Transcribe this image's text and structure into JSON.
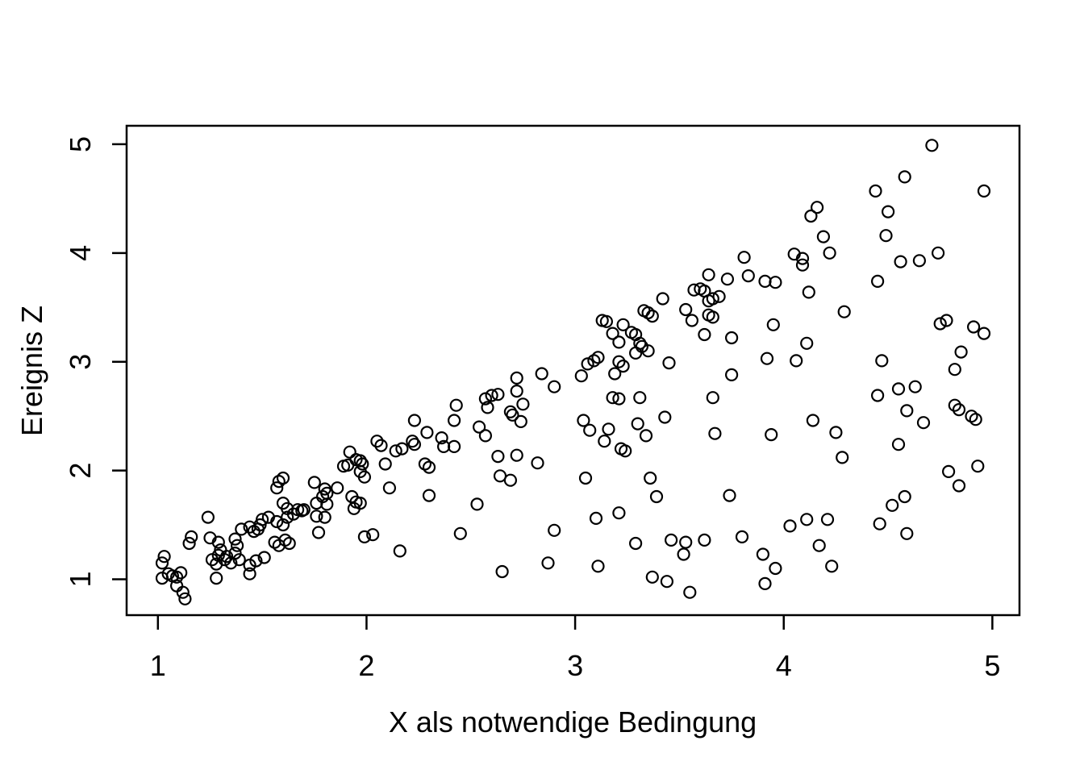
{
  "figure": {
    "background": "#ffffff",
    "foreground": "#000000"
  },
  "chart_data": {
    "type": "scatter",
    "title": "",
    "xlabel": "X als notwendige Bedingung",
    "ylabel": "Ereignis Z",
    "x_ticks": [
      1,
      2,
      3,
      4,
      5
    ],
    "y_ticks": [
      1,
      2,
      3,
      4,
      5
    ],
    "xlim": [
      0.85,
      5.13
    ],
    "ylim": [
      0.67,
      5.17
    ],
    "grid": false,
    "legend": null,
    "marker": "open-circle",
    "marker_color": "#000000",
    "points": [
      [
        1.02,
        1.15
      ],
      [
        1.03,
        1.21
      ],
      [
        1.02,
        1.01
      ],
      [
        1.05,
        1.05
      ],
      [
        1.07,
        1.03
      ],
      [
        1.09,
        1.02
      ],
      [
        1.11,
        1.06
      ],
      [
        1.09,
        0.94
      ],
      [
        1.12,
        0.88
      ],
      [
        1.13,
        0.82
      ],
      [
        1.15,
        1.33
      ],
      [
        1.16,
        1.39
      ],
      [
        1.24,
        1.57
      ],
      [
        1.25,
        1.38
      ],
      [
        1.26,
        1.18
      ],
      [
        1.28,
        1.14
      ],
      [
        1.28,
        1.01
      ],
      [
        1.29,
        1.34
      ],
      [
        1.3,
        1.27
      ],
      [
        1.29,
        1.22
      ],
      [
        1.32,
        1.18
      ],
      [
        1.33,
        1.21
      ],
      [
        1.35,
        1.15
      ],
      [
        1.39,
        1.18
      ],
      [
        1.37,
        1.24
      ],
      [
        1.38,
        1.31
      ],
      [
        1.37,
        1.37
      ],
      [
        1.4,
        1.46
      ],
      [
        1.44,
        1.48
      ],
      [
        1.46,
        1.44
      ],
      [
        1.48,
        1.46
      ],
      [
        1.49,
        1.5
      ],
      [
        1.5,
        1.55
      ],
      [
        1.53,
        1.57
      ],
      [
        1.44,
        1.13
      ],
      [
        1.47,
        1.17
      ],
      [
        1.51,
        1.2
      ],
      [
        1.44,
        1.05
      ],
      [
        1.56,
        1.34
      ],
      [
        1.58,
        1.31
      ],
      [
        1.61,
        1.36
      ],
      [
        1.63,
        1.33
      ],
      [
        1.57,
        1.53
      ],
      [
        1.6,
        1.5
      ],
      [
        1.62,
        1.57
      ],
      [
        1.65,
        1.6
      ],
      [
        1.67,
        1.64
      ],
      [
        1.7,
        1.64
      ],
      [
        1.58,
        1.9
      ],
      [
        1.6,
        1.93
      ],
      [
        1.57,
        1.84
      ],
      [
        1.6,
        1.7
      ],
      [
        1.62,
        1.65
      ],
      [
        1.69,
        1.63
      ],
      [
        1.75,
        1.89
      ],
      [
        1.8,
        1.83
      ],
      [
        1.81,
        1.79
      ],
      [
        1.79,
        1.76
      ],
      [
        1.86,
        1.84
      ],
      [
        1.76,
        1.7
      ],
      [
        1.81,
        1.69
      ],
      [
        1.76,
        1.58
      ],
      [
        1.8,
        1.57
      ],
      [
        1.77,
        1.43
      ],
      [
        1.89,
        2.04
      ],
      [
        1.92,
        2.17
      ],
      [
        1.91,
        2.05
      ],
      [
        1.95,
        2.1
      ],
      [
        1.97,
        2.09
      ],
      [
        1.98,
        2.06
      ],
      [
        1.97,
        1.99
      ],
      [
        1.99,
        1.94
      ],
      [
        1.93,
        1.76
      ],
      [
        1.95,
        1.71
      ],
      [
        1.97,
        1.7
      ],
      [
        1.94,
        1.65
      ],
      [
        2.09,
        2.06
      ],
      [
        2.05,
        2.27
      ],
      [
        2.07,
        2.23
      ],
      [
        2.14,
        2.18
      ],
      [
        2.17,
        2.2
      ],
      [
        2.23,
        2.46
      ],
      [
        2.22,
        2.27
      ],
      [
        2.23,
        2.24
      ],
      [
        2.29,
        2.35
      ],
      [
        2.11,
        1.84
      ],
      [
        2.16,
        1.26
      ],
      [
        1.99,
        1.39
      ],
      [
        2.03,
        1.41
      ],
      [
        2.28,
        2.06
      ],
      [
        2.3,
        2.03
      ],
      [
        2.3,
        1.77
      ],
      [
        2.72,
        2.85
      ],
      [
        2.84,
        2.89
      ],
      [
        2.9,
        2.77
      ],
      [
        3.03,
        2.87
      ],
      [
        3.19,
        2.89
      ],
      [
        2.43,
        2.6
      ],
      [
        2.42,
        2.46
      ],
      [
        2.57,
        2.66
      ],
      [
        2.6,
        2.69
      ],
      [
        2.63,
        2.7
      ],
      [
        2.58,
        2.58
      ],
      [
        2.72,
        2.73
      ],
      [
        2.69,
        2.54
      ],
      [
        2.7,
        2.51
      ],
      [
        2.75,
        2.61
      ],
      [
        2.74,
        2.45
      ],
      [
        2.54,
        2.4
      ],
      [
        2.57,
        2.32
      ],
      [
        2.36,
        2.3
      ],
      [
        2.37,
        2.22
      ],
      [
        2.42,
        2.22
      ],
      [
        2.63,
        2.13
      ],
      [
        2.72,
        2.14
      ],
      [
        2.82,
        2.07
      ],
      [
        2.64,
        1.95
      ],
      [
        2.69,
        1.91
      ],
      [
        3.05,
        1.93
      ],
      [
        3.04,
        2.46
      ],
      [
        3.07,
        2.37
      ],
      [
        3.16,
        2.38
      ],
      [
        3.14,
        2.27
      ],
      [
        3.18,
        2.67
      ],
      [
        3.21,
        2.66
      ],
      [
        3.31,
        2.67
      ],
      [
        3.3,
        2.43
      ],
      [
        3.34,
        2.32
      ],
      [
        3.43,
        2.49
      ],
      [
        3.22,
        2.2
      ],
      [
        3.24,
        2.18
      ],
      [
        3.36,
        1.93
      ],
      [
        3.39,
        1.76
      ],
      [
        3.66,
        2.67
      ],
      [
        3.67,
        2.34
      ],
      [
        3.75,
        2.88
      ],
      [
        3.74,
        1.77
      ],
      [
        2.53,
        1.69
      ],
      [
        2.45,
        1.42
      ],
      [
        2.9,
        1.45
      ],
      [
        3.1,
        1.56
      ],
      [
        3.21,
        1.61
      ],
      [
        3.29,
        1.33
      ],
      [
        3.46,
        1.36
      ],
      [
        3.53,
        1.34
      ],
      [
        3.52,
        1.23
      ],
      [
        3.62,
        1.36
      ],
      [
        2.87,
        1.15
      ],
      [
        2.65,
        1.07
      ],
      [
        3.11,
        1.12
      ],
      [
        3.37,
        1.02
      ],
      [
        3.44,
        0.98
      ],
      [
        3.55,
        0.88
      ],
      [
        4.45,
        2.69
      ],
      [
        4.55,
        2.75
      ],
      [
        4.63,
        2.77
      ],
      [
        4.59,
        2.55
      ],
      [
        4.67,
        2.44
      ],
      [
        4.82,
        2.6
      ],
      [
        4.84,
        2.56
      ],
      [
        4.9,
        2.5
      ],
      [
        4.92,
        2.47
      ],
      [
        4.14,
        2.46
      ],
      [
        3.94,
        2.33
      ],
      [
        4.25,
        2.35
      ],
      [
        4.28,
        2.12
      ],
      [
        4.55,
        2.24
      ],
      [
        4.79,
        1.99
      ],
      [
        4.93,
        2.04
      ],
      [
        4.84,
        1.86
      ],
      [
        4.58,
        1.76
      ],
      [
        4.52,
        1.68
      ],
      [
        4.46,
        1.51
      ],
      [
        4.59,
        1.42
      ],
      [
        4.03,
        1.49
      ],
      [
        4.11,
        1.55
      ],
      [
        4.21,
        1.55
      ],
      [
        3.8,
        1.39
      ],
      [
        3.9,
        1.23
      ],
      [
        3.96,
        1.1
      ],
      [
        4.17,
        1.31
      ],
      [
        4.23,
        1.12
      ],
      [
        3.91,
        0.96
      ],
      [
        3.13,
        3.38
      ],
      [
        3.15,
        3.37
      ],
      [
        3.18,
        3.26
      ],
      [
        3.21,
        3.18
      ],
      [
        3.23,
        3.34
      ],
      [
        3.27,
        3.27
      ],
      [
        3.29,
        3.25
      ],
      [
        3.31,
        3.17
      ],
      [
        3.32,
        3.14
      ],
      [
        3.33,
        3.47
      ],
      [
        3.35,
        3.45
      ],
      [
        3.37,
        3.42
      ],
      [
        3.42,
        3.58
      ],
      [
        3.29,
        3.08
      ],
      [
        3.35,
        3.1
      ],
      [
        3.45,
        2.99
      ],
      [
        3.53,
        3.48
      ],
      [
        3.56,
        3.38
      ],
      [
        3.57,
        3.66
      ],
      [
        3.6,
        3.67
      ],
      [
        3.62,
        3.65
      ],
      [
        3.64,
        3.8
      ],
      [
        3.64,
        3.56
      ],
      [
        3.66,
        3.58
      ],
      [
        3.64,
        3.43
      ],
      [
        3.66,
        3.41
      ],
      [
        3.69,
        3.6
      ],
      [
        3.62,
        3.25
      ],
      [
        3.73,
        3.76
      ],
      [
        3.75,
        3.22
      ],
      [
        3.06,
        2.98
      ],
      [
        3.09,
        3.01
      ],
      [
        3.11,
        3.04
      ],
      [
        3.21,
        3.0
      ],
      [
        3.23,
        2.96
      ],
      [
        4.71,
        4.99
      ],
      [
        4.58,
        4.7
      ],
      [
        4.44,
        4.57
      ],
      [
        4.96,
        4.57
      ],
      [
        4.13,
        4.34
      ],
      [
        4.16,
        4.42
      ],
      [
        4.5,
        4.38
      ],
      [
        4.19,
        4.15
      ],
      [
        4.49,
        4.16
      ],
      [
        4.22,
        4.0
      ],
      [
        4.05,
        3.99
      ],
      [
        4.09,
        3.95
      ],
      [
        4.09,
        3.89
      ],
      [
        3.81,
        3.96
      ],
      [
        3.83,
        3.79
      ],
      [
        3.91,
        3.74
      ],
      [
        3.96,
        3.73
      ],
      [
        4.56,
        3.92
      ],
      [
        4.65,
        3.93
      ],
      [
        4.74,
        4.0
      ],
      [
        4.45,
        3.74
      ],
      [
        4.12,
        3.64
      ],
      [
        4.29,
        3.46
      ],
      [
        3.95,
        3.34
      ],
      [
        4.11,
        3.17
      ],
      [
        3.92,
        3.03
      ],
      [
        4.06,
        3.01
      ],
      [
        4.47,
        3.01
      ],
      [
        4.75,
        3.35
      ],
      [
        4.78,
        3.38
      ],
      [
        4.91,
        3.32
      ],
      [
        4.96,
        3.26
      ],
      [
        4.85,
        3.09
      ],
      [
        4.82,
        2.93
      ]
    ]
  }
}
